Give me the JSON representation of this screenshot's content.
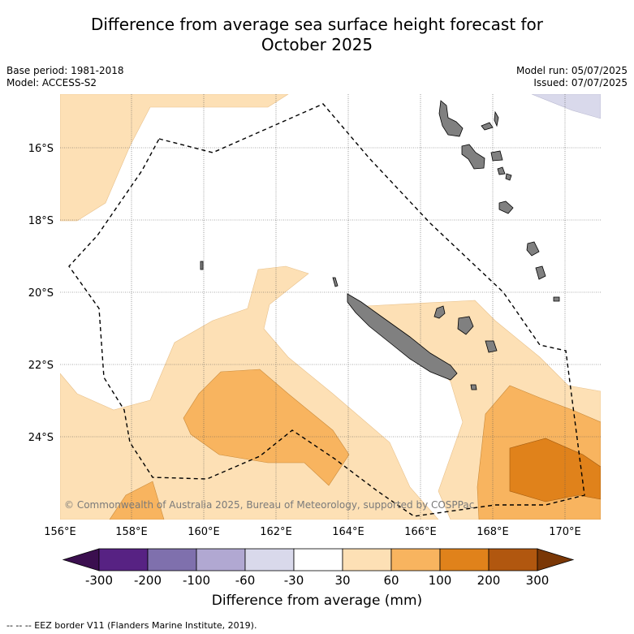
{
  "title_line1": "Difference from average sea surface height forecast for",
  "title_line2": "October 2025",
  "base_period": "Base period: 1981-2018",
  "model": "Model: ACCESS-S2",
  "model_run": "Model run: 05/07/2025",
  "issued": "Issued: 07/07/2025",
  "copyright": "© Commonwealth of Australia 2025, Bureau of Meteorology, supported by COSPPac",
  "lat_labels": [
    "16°S",
    "18°S",
    "20°S",
    "22°S",
    "24°S"
  ],
  "lon_labels": [
    "156°E",
    "158°E",
    "160°E",
    "162°E",
    "164°E",
    "166°E",
    "168°E",
    "170°E"
  ],
  "colorbar": {
    "label": "Difference from average (mm)",
    "ticks": [
      "-300",
      "-200",
      "-100",
      "-60",
      "-30",
      "30",
      "60",
      "100",
      "200",
      "300"
    ],
    "colors": [
      "#3b0f4f",
      "#572283",
      "#7f70ad",
      "#b1a8d2",
      "#d9d9eb",
      "#ffffff",
      "#fde0b5",
      "#f8b45f",
      "#e0821b",
      "#b1570f",
      "#7a3706"
    ]
  },
  "eez_note": "--  --  -- EEZ border V11 (Flanders Marine Institute, 2019)."
}
